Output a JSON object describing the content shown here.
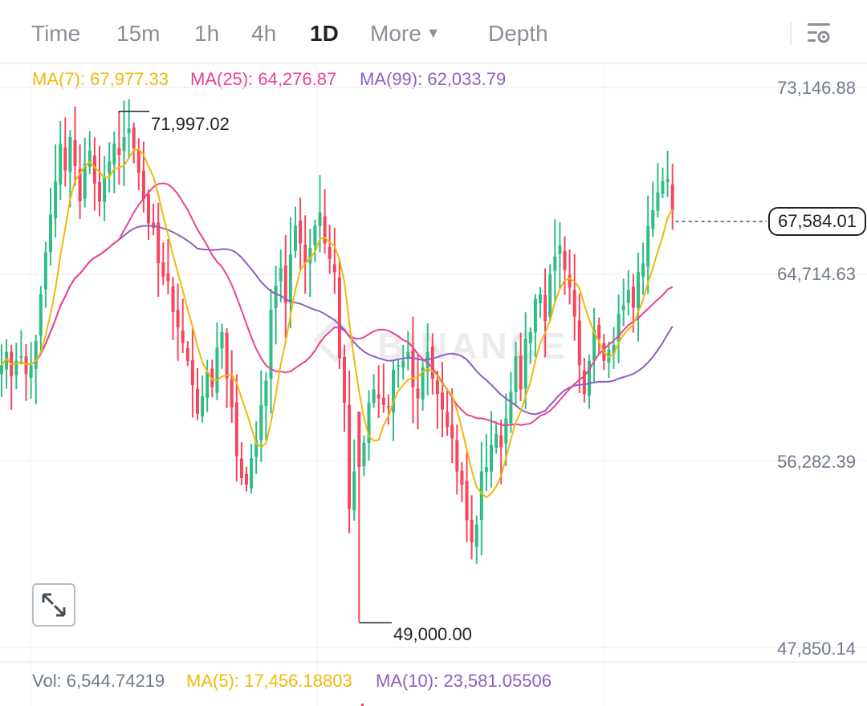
{
  "toolbar": {
    "tabs": [
      {
        "label": "Time",
        "active": false
      },
      {
        "label": "15m",
        "active": false
      },
      {
        "label": "1h",
        "active": false
      },
      {
        "label": "4h",
        "active": false
      },
      {
        "label": "1D",
        "active": true
      },
      {
        "label": "More",
        "active": false
      },
      {
        "label": "Depth",
        "active": false
      }
    ],
    "settings_icon": "chart-settings-icon"
  },
  "legend": {
    "ma7": {
      "label": "MA(7): 67,977.33",
      "color": "#f0b90b"
    },
    "ma25": {
      "label": "MA(25): 64,276.87",
      "color": "#e84393"
    },
    "ma99": {
      "label": "MA(99): 62,033.79",
      "color": "#8e5fc2"
    }
  },
  "volume_legend": {
    "vol": "Vol: 6,544.74219",
    "ma5": "MA(5): 17,456.18803",
    "ma10": "MA(10): 23,581.05506"
  },
  "axis": {
    "labels": [
      "73,146.88",
      "64,714.63",
      "56,282.39",
      "47,850.14"
    ]
  },
  "current_price": "67,584.01",
  "high_marker": "71,997.02",
  "low_marker": "49,000.00",
  "watermark": "BINANCE",
  "colors": {
    "up": "#2ebd85",
    "down": "#f6465d",
    "grid": "#f0f1f3",
    "text_dim": "#707a8a"
  },
  "chart_data": {
    "type": "candlestick",
    "title": "",
    "interval": "1D",
    "ylim": [
      45800,
      74500
    ],
    "gridlines_y": [
      73146.88,
      64714.63,
      56282.39,
      47850.14
    ],
    "current_price": 67584.01,
    "highest": 71997.02,
    "lowest": 49000.0,
    "closes": [
      60600,
      61200,
      60100,
      60800,
      61000,
      60200,
      60600,
      61700,
      63800,
      65700,
      67400,
      68900,
      70600,
      69400,
      70900,
      69600,
      68000,
      69700,
      70300,
      68800,
      68000,
      69100,
      69800,
      70600,
      70100,
      70900,
      71300,
      70400,
      69300,
      68100,
      67000,
      66800,
      65200,
      64600,
      64400,
      63000,
      62300,
      61600,
      60800,
      59700,
      58400,
      59200,
      60300,
      59600,
      61400,
      62100,
      60000,
      58700,
      56500,
      55500,
      55200,
      56400,
      57200,
      58800,
      59900,
      63100,
      64200,
      65000,
      63400,
      65600,
      66900,
      66100,
      65200,
      65900,
      66900,
      67500,
      66100,
      65400,
      64800,
      60900,
      58900,
      54100,
      55800,
      56000,
      57100,
      58900,
      59500,
      59100,
      58800,
      58700,
      60400,
      60600,
      60800,
      61200,
      59600,
      59100,
      60500,
      61200,
      60000,
      59300,
      58600,
      57800,
      57300,
      55800,
      55200,
      53600,
      52600,
      53400,
      55800,
      56000,
      57000,
      57500,
      56900,
      58200,
      59400,
      61000,
      59500,
      61800,
      62100,
      63600,
      63800,
      62600,
      64700,
      65500,
      66000,
      64900,
      64100,
      62800,
      60600,
      59300,
      60800,
      62200,
      61800,
      60800,
      61300,
      61500,
      62900,
      63300,
      64000,
      63200,
      64800,
      65200,
      66900,
      67600,
      68400,
      68900,
      69000,
      67584
    ]
  }
}
